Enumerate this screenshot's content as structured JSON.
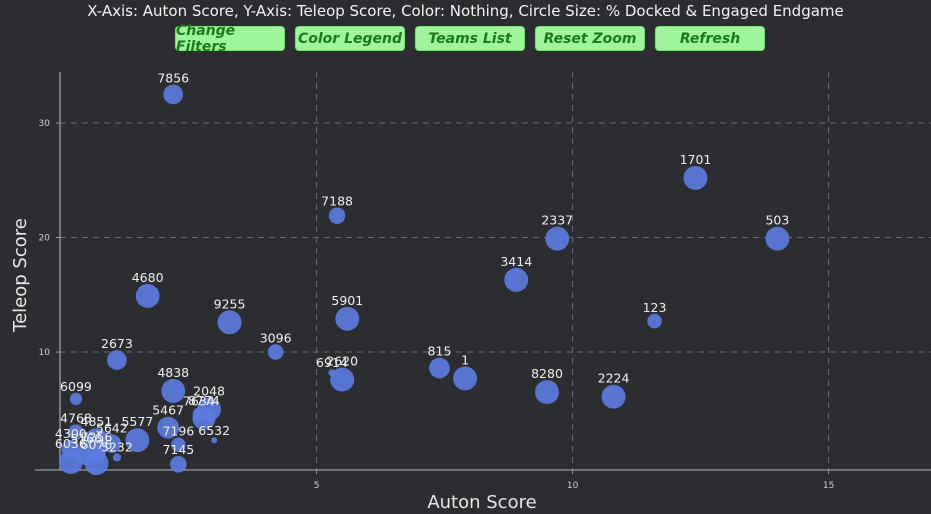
{
  "header": {
    "title": "X-Axis: Auton Score, Y-Axis: Teleop Score, Color: Nothing, Circle Size: % Docked & Engaged Endgame"
  },
  "toolbar": {
    "buttons": [
      {
        "label": "Change Filters"
      },
      {
        "label": "Color Legend"
      },
      {
        "label": "Teams List"
      },
      {
        "label": "Reset Zoom"
      },
      {
        "label": "Refresh"
      }
    ]
  },
  "colors": {
    "background": "#2b2d30",
    "point": "#5b7be0",
    "button_bg": "#9ef59a",
    "button_text": "#1a7a19"
  },
  "chart_data": {
    "type": "scatter",
    "xlabel": "Auton Score",
    "ylabel": "Teleop Score",
    "x_ticks": [
      5,
      10,
      15
    ],
    "y_ticks": [
      10,
      20,
      30
    ],
    "xlim": [
      -0.5,
      17
    ],
    "ylim": [
      -0.3,
      35.5
    ],
    "grid": "dashed",
    "points": [
      {
        "team": "7856",
        "x": 2.2,
        "y": 32.5,
        "size": 0.75
      },
      {
        "team": "1701",
        "x": 12.4,
        "y": 25.2,
        "size": 0.95
      },
      {
        "team": "7188",
        "x": 5.4,
        "y": 21.9,
        "size": 0.6
      },
      {
        "team": "2337",
        "x": 9.7,
        "y": 19.9,
        "size": 0.95
      },
      {
        "team": "503",
        "x": 14.0,
        "y": 19.9,
        "size": 0.95
      },
      {
        "team": "3414",
        "x": 8.9,
        "y": 16.3,
        "size": 0.95
      },
      {
        "team": "4680",
        "x": 1.7,
        "y": 14.9,
        "size": 0.95
      },
      {
        "team": "9255",
        "x": 3.3,
        "y": 12.6,
        "size": 0.95
      },
      {
        "team": "5901",
        "x": 5.6,
        "y": 12.9,
        "size": 0.95
      },
      {
        "team": "123",
        "x": 11.6,
        "y": 12.7,
        "size": 0.5
      },
      {
        "team": "3096",
        "x": 4.2,
        "y": 10.0,
        "size": 0.55
      },
      {
        "team": "2673",
        "x": 1.1,
        "y": 9.3,
        "size": 0.75
      },
      {
        "team": "815",
        "x": 7.4,
        "y": 8.6,
        "size": 0.8
      },
      {
        "team": "1",
        "x": 7.9,
        "y": 7.7,
        "size": 0.95
      },
      {
        "team": "6914",
        "x": 5.3,
        "y": 8.2,
        "size": 0.15
      },
      {
        "team": "2620",
        "x": 5.5,
        "y": 7.6,
        "size": 0.95
      },
      {
        "team": "8280",
        "x": 9.5,
        "y": 6.5,
        "size": 0.95
      },
      {
        "team": "2224",
        "x": 10.8,
        "y": 6.1,
        "size": 0.95
      },
      {
        "team": "6099",
        "x": 0.3,
        "y": 5.9,
        "size": 0.4
      },
      {
        "team": "4838",
        "x": 2.2,
        "y": 6.6,
        "size": 0.95
      },
      {
        "team": "2048",
        "x": 2.9,
        "y": 5.0,
        "size": 0.95
      },
      {
        "team": "7634",
        "x": 2.7,
        "y": 4.6,
        "size": 0.4
      },
      {
        "team": "8774",
        "x": 2.8,
        "y": 4.2,
        "size": 0.9
      },
      {
        "team": "5467",
        "x": 2.1,
        "y": 3.4,
        "size": 0.85
      },
      {
        "team": "6532",
        "x": 3.0,
        "y": 2.3,
        "size": 0.1
      },
      {
        "team": "4768",
        "x": 0.3,
        "y": 3.0,
        "size": 0.55
      },
      {
        "team": "4851",
        "x": 0.7,
        "y": 2.3,
        "size": 0.95
      },
      {
        "team": "5642",
        "x": 1.0,
        "y": 2.0,
        "size": 0.7
      },
      {
        "team": "5577",
        "x": 1.5,
        "y": 2.3,
        "size": 0.95
      },
      {
        "team": "7196",
        "x": 2.3,
        "y": 1.9,
        "size": 0.5
      },
      {
        "team": "4300",
        "x": 0.2,
        "y": 1.5,
        "size": 0.7
      },
      {
        "team": "5166",
        "x": 0.5,
        "y": 1.0,
        "size": 0.75
      },
      {
        "team": "7256",
        "x": 0.7,
        "y": 1.2,
        "size": 0.7
      },
      {
        "team": "5232",
        "x": 1.1,
        "y": 0.8,
        "size": 0.2
      },
      {
        "team": "6036",
        "x": 0.2,
        "y": 0.4,
        "size": 0.95
      },
      {
        "team": "6076",
        "x": 0.7,
        "y": 0.3,
        "size": 0.95
      },
      {
        "team": "7145",
        "x": 2.3,
        "y": 0.2,
        "size": 0.6
      }
    ]
  }
}
